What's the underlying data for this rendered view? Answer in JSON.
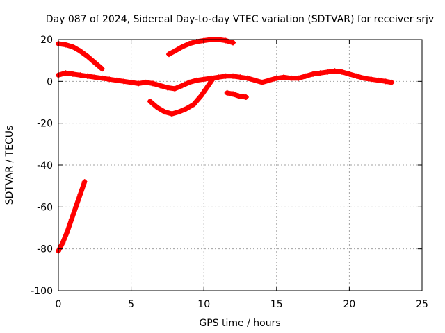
{
  "chart_data": {
    "type": "scatter",
    "title": "Day 087 of 2024, Sidereal Day-to-day VTEC variation (SDTVAR) for receiver srjv",
    "xlabel": "GPS time / hours",
    "ylabel": "SDTVAR / TECUs",
    "xlim": [
      0,
      25
    ],
    "ylim": [
      -100,
      20
    ],
    "xticks": [
      0,
      5,
      10,
      15,
      20,
      25
    ],
    "yticks": [
      -100,
      -80,
      -60,
      -40,
      -20,
      0,
      20
    ],
    "grid": true,
    "series_color": "#ff0000",
    "series": [
      {
        "name": "main-track",
        "points": [
          [
            0,
            3
          ],
          [
            0.5,
            4
          ],
          [
            1,
            3.5
          ],
          [
            1.5,
            3
          ],
          [
            2,
            2.5
          ],
          [
            2.5,
            2
          ],
          [
            3,
            1.5
          ],
          [
            3.5,
            1
          ],
          [
            4,
            0.5
          ],
          [
            4.5,
            0
          ],
          [
            5,
            -0.5
          ],
          [
            5.5,
            -1
          ],
          [
            6,
            -0.5
          ],
          [
            6.5,
            -1
          ],
          [
            7,
            -2
          ],
          [
            7.5,
            -3
          ],
          [
            8,
            -3.5
          ],
          [
            8.5,
            -2
          ],
          [
            9,
            -0.5
          ],
          [
            9.5,
            0.5
          ],
          [
            10,
            1
          ],
          [
            10.5,
            1.5
          ],
          [
            11,
            2
          ],
          [
            11.5,
            2.5
          ],
          [
            12,
            2.5
          ],
          [
            12.5,
            2
          ],
          [
            13,
            1.5
          ],
          [
            13.5,
            0.5
          ],
          [
            14,
            -0.5
          ],
          [
            14.5,
            0.5
          ],
          [
            15,
            1.5
          ],
          [
            15.5,
            2
          ],
          [
            16,
            1.5
          ],
          [
            16.5,
            1.5
          ],
          [
            17,
            2.5
          ],
          [
            17.5,
            3.5
          ],
          [
            18,
            4
          ],
          [
            18.5,
            4.5
          ],
          [
            19,
            5
          ],
          [
            19.5,
            4.5
          ],
          [
            20,
            3.5
          ],
          [
            20.5,
            2.5
          ],
          [
            21,
            1.5
          ],
          [
            21.5,
            1
          ],
          [
            22,
            0.5
          ],
          [
            22.5,
            0
          ],
          [
            22.9,
            -0.5
          ]
        ]
      },
      {
        "name": "upper-left-arc",
        "points": [
          [
            0,
            18
          ],
          [
            0.5,
            17.5
          ],
          [
            1,
            16.5
          ],
          [
            1.5,
            14.5
          ],
          [
            2,
            12
          ],
          [
            2.5,
            9
          ],
          [
            3,
            6
          ]
        ]
      },
      {
        "name": "upper-mid-arc",
        "points": [
          [
            7.6,
            13
          ],
          [
            8,
            14.5
          ],
          [
            8.5,
            16.5
          ],
          [
            9,
            18
          ],
          [
            9.5,
            19
          ],
          [
            10,
            19.5
          ],
          [
            10.5,
            20
          ],
          [
            11,
            20
          ],
          [
            11.5,
            19.5
          ],
          [
            12,
            18.5
          ]
        ]
      },
      {
        "name": "lower-dip",
        "points": [
          [
            6.3,
            -9.5
          ],
          [
            6.8,
            -12.5
          ],
          [
            7.3,
            -14.5
          ],
          [
            7.8,
            -15.5
          ],
          [
            8.3,
            -14.5
          ],
          [
            8.8,
            -13
          ],
          [
            9.3,
            -11
          ],
          [
            9.8,
            -7
          ],
          [
            10.3,
            -2
          ],
          [
            10.6,
            1
          ]
        ]
      },
      {
        "name": "short-segment",
        "points": [
          [
            11.6,
            -5.5
          ],
          [
            12,
            -6
          ],
          [
            12.4,
            -7
          ],
          [
            12.9,
            -7.5
          ]
        ]
      },
      {
        "name": "steep-rise",
        "points": [
          [
            0,
            -81
          ],
          [
            0.3,
            -77
          ],
          [
            0.6,
            -72
          ],
          [
            0.9,
            -66
          ],
          [
            1.2,
            -60
          ],
          [
            1.5,
            -54
          ],
          [
            1.8,
            -48
          ]
        ]
      }
    ]
  }
}
